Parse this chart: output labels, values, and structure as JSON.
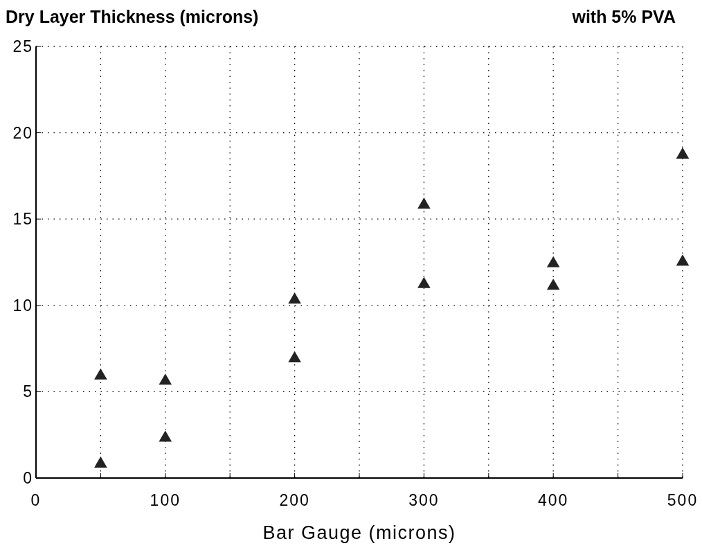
{
  "chart_data": {
    "type": "scatter",
    "title": "Dry Layer Thickness (microns)",
    "subtitle": "with 5% PVA",
    "xlabel": "Bar Gauge (microns)",
    "x": [
      50,
      50,
      100,
      100,
      200,
      200,
      300,
      300,
      400,
      400,
      500,
      500
    ],
    "values": [
      0.9,
      6.0,
      2.4,
      5.7,
      7.0,
      10.4,
      11.3,
      15.9,
      11.2,
      12.5,
      12.6,
      18.8
    ],
    "color": "#222222",
    "marker": "triangle",
    "xlim": [
      0,
      500
    ],
    "xticks": [
      0,
      {
        "value": 50,
        "label": null
      },
      100,
      {
        "value": 150,
        "label": null
      },
      200,
      {
        "value": 250,
        "label": null
      },
      300,
      {
        "value": 350,
        "label": null
      },
      400,
      {
        "value": 450,
        "label": null
      },
      500
    ],
    "ylim": [
      0,
      25
    ],
    "yticks": [
      0,
      5,
      10,
      15,
      20,
      25
    ],
    "grid": true
  }
}
